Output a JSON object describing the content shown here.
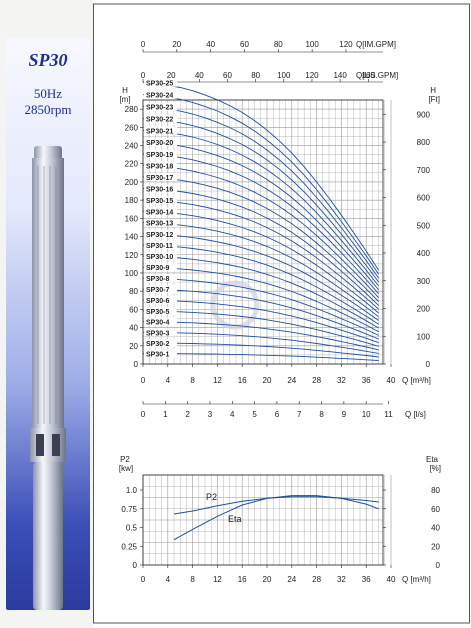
{
  "product": {
    "model": "SP30",
    "frequency": "50Hz",
    "speed": "2850rpm"
  },
  "chart_data": [
    {
      "type": "line",
      "name_note": "Head curves SP30-1 to SP30-25",
      "x": [
        0,
        2,
        4,
        6,
        8,
        10,
        12,
        14,
        16,
        18,
        20,
        22,
        24,
        26,
        28,
        30,
        32,
        34,
        36,
        38
      ],
      "stage_labels": [
        "SP30-25",
        "SP30-24",
        "SP30-23",
        "SP30-22",
        "SP30-21",
        "SP30-20",
        "SP30-19",
        "SP30-18",
        "SP30-17",
        "SP30-16",
        "SP30-15",
        "SP30-14",
        "SP30-13",
        "SP30-12",
        "SP30-11",
        "SP30-10",
        "SP30-9",
        "SP30-8",
        "SP30-7",
        "SP30-6",
        "SP30-5",
        "SP30-4",
        "SP30-3",
        "SP30-2",
        "SP30-1"
      ],
      "per_stage_head": [
        11.5,
        11.46,
        11.39,
        11.3,
        11.17,
        11.0,
        10.8,
        10.56,
        10.28,
        9.95,
        9.56,
        9.12,
        8.62,
        8.06,
        7.44,
        6.78,
        6.08,
        5.36,
        4.62,
        3.84
      ],
      "xlabel": "Q [m³/h]",
      "x_ticks": [
        0,
        4,
        8,
        12,
        16,
        20,
        24,
        28,
        32,
        36,
        40
      ],
      "xlim": [
        0,
        40
      ],
      "y_left_label": "H\n[m]",
      "y_left_ticks": [
        0,
        20,
        40,
        60,
        80,
        100,
        120,
        140,
        160,
        180,
        200,
        220,
        240,
        260,
        280
      ],
      "ylim": [
        0,
        290
      ],
      "y_right_label": "H\n[Ft]",
      "y_right_ticks": [
        0,
        100,
        200,
        300,
        400,
        500,
        600,
        700,
        800,
        900
      ],
      "top_axis_imp": {
        "label": "Q[IM.GPM]",
        "ticks": [
          0,
          20,
          40,
          60,
          80,
          100,
          120
        ]
      },
      "top_axis_us": {
        "label": "Q[US.GPM]",
        "ticks": [
          0,
          20,
          40,
          60,
          80,
          100,
          120,
          140,
          160
        ]
      },
      "bottom_axis_ls": {
        "label": "Q [l/s]",
        "ticks": [
          0,
          1,
          2,
          3,
          4,
          5,
          6,
          7,
          8,
          9,
          10,
          11
        ]
      },
      "grid": true
    },
    {
      "type": "line",
      "x": [
        5,
        8,
        12,
        16,
        20,
        24,
        28,
        32,
        36,
        38
      ],
      "series": [
        {
          "name": "P2",
          "values": [
            0.68,
            0.72,
            0.79,
            0.85,
            0.89,
            0.91,
            0.91,
            0.89,
            0.86,
            0.84
          ]
        },
        {
          "name": "Eta",
          "values": [
            27,
            38,
            52,
            64,
            71,
            74,
            74,
            71,
            65,
            60
          ]
        }
      ],
      "xlabel": "Q [m³/h]",
      "x_ticks": [
        0,
        4,
        8,
        12,
        16,
        20,
        24,
        28,
        32,
        36,
        40
      ],
      "y_left_label": "P2\n[kw]",
      "y_left_ticks": [
        0,
        0.25,
        0.5,
        0.75,
        1.0
      ],
      "y_left_tick_labels": [
        "0",
        "0.25",
        "0.5",
        "0.75",
        "1.0"
      ],
      "y_right_label": "Eta\n[%]",
      "y_right_ticks": [
        0,
        20,
        40,
        60,
        80
      ],
      "ylim_left": [
        0,
        1.2
      ],
      "ylim_right": [
        0,
        96
      ],
      "grid": true
    }
  ],
  "colors": {
    "curve": "#1f4fa0",
    "grid": "#9a9a9a",
    "panel": "#2a3b9e"
  },
  "icons": {
    "watermark": "company-logo-watermark"
  }
}
